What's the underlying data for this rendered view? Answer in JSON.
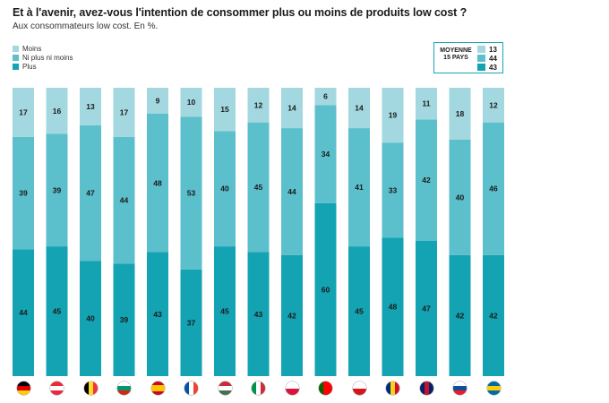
{
  "title": "Et à l'avenir, avez-vous l'intention de consommer plus ou moins de produits low cost ?",
  "subtitle": "Aux consommateurs low cost. En %.",
  "legend": [
    {
      "label": "Moins",
      "color": "#a3d8e0"
    },
    {
      "label": "Ni plus ni moins",
      "color": "#5cbfcc"
    },
    {
      "label": "Plus",
      "color": "#14a3b3"
    }
  ],
  "average": {
    "label_line1": "MOYENNE",
    "label_line2": "15 PAYS",
    "moins": "13",
    "ni": "44",
    "plus": "43"
  },
  "chart_data": {
    "type": "bar",
    "stacked": true,
    "ylim": [
      0,
      100
    ],
    "categories": [
      "Allemagne",
      "Autriche",
      "Belgique",
      "Bulgarie",
      "Espagne",
      "France",
      "Hongrie",
      "Italie",
      "Pologne",
      "Portugal",
      "République tchèque",
      "Roumanie",
      "Royaume-Uni",
      "Slovaquie",
      "Suède"
    ],
    "series": [
      {
        "name": "Plus",
        "color": "#14a3b3",
        "values": [
          44,
          45,
          40,
          39,
          43,
          37,
          45,
          43,
          42,
          60,
          45,
          48,
          47,
          42,
          42
        ]
      },
      {
        "name": "Ni plus ni moins",
        "color": "#5cbfcc",
        "values": [
          39,
          39,
          47,
          44,
          48,
          53,
          40,
          45,
          44,
          34,
          41,
          33,
          42,
          40,
          46
        ]
      },
      {
        "name": "Moins",
        "color": "#a3d8e0",
        "values": [
          17,
          16,
          13,
          17,
          9,
          10,
          15,
          12,
          14,
          6,
          14,
          19,
          11,
          18,
          12
        ]
      }
    ]
  },
  "flags": [
    {
      "icon": "flag-germany-icon",
      "dir": "h",
      "colors": [
        "#000000",
        "#dd0000",
        "#ffce00"
      ]
    },
    {
      "icon": "flag-austria-icon",
      "dir": "h",
      "colors": [
        "#ed2939",
        "#ffffff",
        "#ed2939"
      ]
    },
    {
      "icon": "flag-belgium-icon",
      "dir": "v",
      "colors": [
        "#000000",
        "#fdda24",
        "#ef3340"
      ]
    },
    {
      "icon": "flag-bulgaria-icon",
      "dir": "h",
      "colors": [
        "#ffffff",
        "#00966e",
        "#d62612"
      ]
    },
    {
      "icon": "flag-spain-icon",
      "dir": "h",
      "colors": [
        "#c60b1e",
        "#ffc400",
        "#ffc400",
        "#c60b1e"
      ]
    },
    {
      "icon": "flag-france-icon",
      "dir": "v",
      "colors": [
        "#0055a4",
        "#ffffff",
        "#ef4135"
      ]
    },
    {
      "icon": "flag-hungary-icon",
      "dir": "h",
      "colors": [
        "#ce2939",
        "#ffffff",
        "#477050"
      ]
    },
    {
      "icon": "flag-italy-icon",
      "dir": "v",
      "colors": [
        "#009246",
        "#ffffff",
        "#ce2b37"
      ]
    },
    {
      "icon": "flag-poland-icon",
      "dir": "h",
      "colors": [
        "#ffffff",
        "#dc143c"
      ]
    },
    {
      "icon": "flag-portugal-icon",
      "dir": "v",
      "colors": [
        "#006600",
        "#ff0000",
        "#ff0000"
      ]
    },
    {
      "icon": "flag-czechia-icon",
      "dir": "h",
      "colors": [
        "#ffffff",
        "#d7141a"
      ]
    },
    {
      "icon": "flag-romania-icon",
      "dir": "v",
      "colors": [
        "#002b7f",
        "#fcd116",
        "#ce1126"
      ]
    },
    {
      "icon": "flag-uk-icon",
      "dir": "v",
      "colors": [
        "#012169",
        "#c8102e",
        "#012169"
      ]
    },
    {
      "icon": "flag-slovakia-icon",
      "dir": "h",
      "colors": [
        "#ffffff",
        "#0b4ea2",
        "#ee1c25"
      ]
    },
    {
      "icon": "flag-sweden-icon",
      "dir": "h",
      "colors": [
        "#006aa7",
        "#fecc00",
        "#006aa7"
      ]
    }
  ]
}
